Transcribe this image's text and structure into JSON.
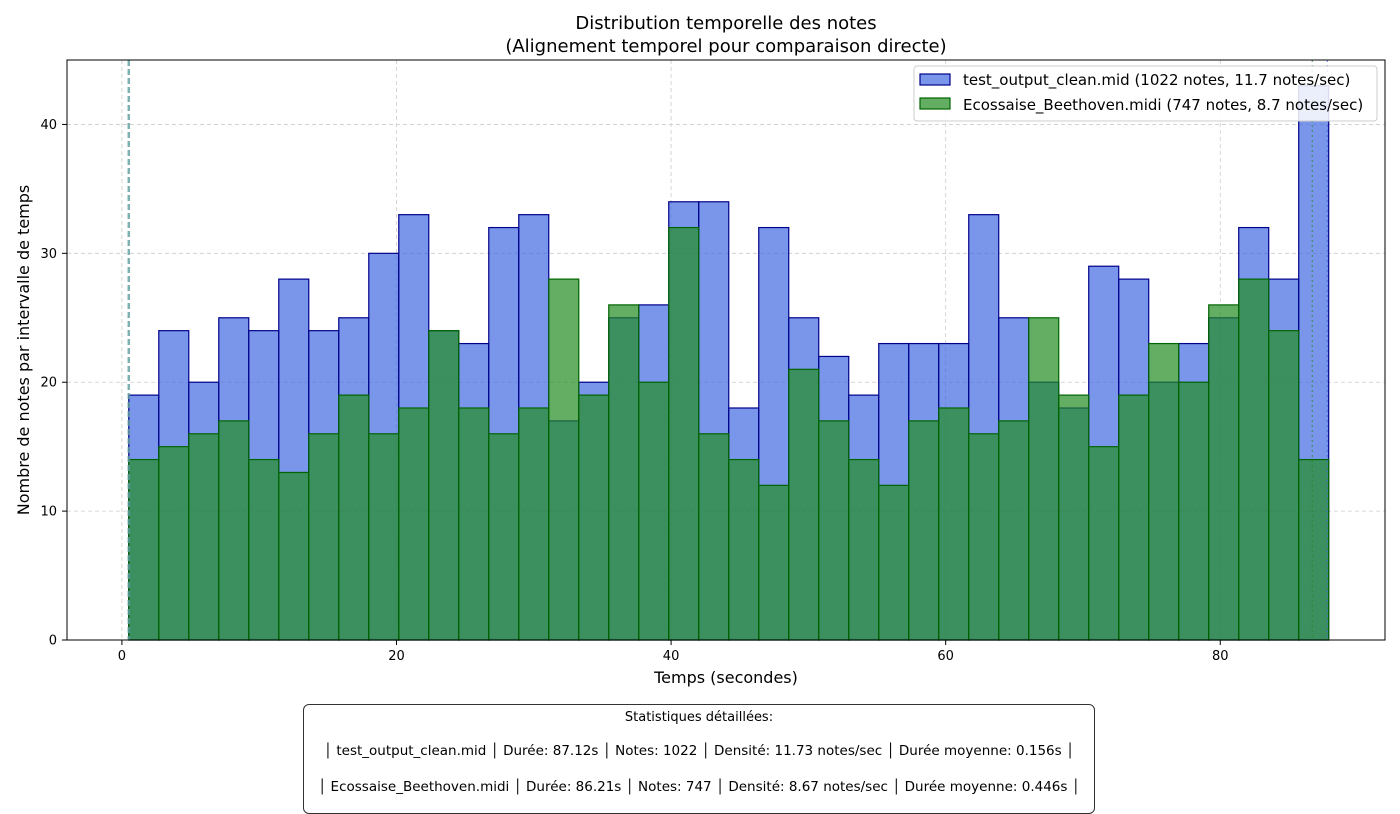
{
  "chart_data": {
    "type": "bar",
    "title": "Distribution temporelle des notes",
    "subtitle": "(Alignement temporel pour comparaison directe)",
    "xlabel": "Temps (secondes)",
    "ylabel": "Nombre de notes par intervalle de temps",
    "xlim": [
      -4,
      92
    ],
    "ylim": [
      0,
      45
    ],
    "xticks": [
      0,
      20,
      40,
      60,
      80
    ],
    "yticks": [
      0,
      10,
      20,
      30,
      40
    ],
    "grid": true,
    "legend_position": "top-right",
    "bin_start": 0.5,
    "bin_width": 2.185,
    "vlines": [
      0.5,
      86.7,
      87.8
    ],
    "series": [
      {
        "name": "test_output_clean.mid (1022 notes, 11.7 notes/sec)",
        "color": "#4169e1",
        "edge": "#00008b",
        "values": [
          19,
          24,
          20,
          25,
          24,
          28,
          24,
          25,
          30,
          33,
          24,
          23,
          32,
          33,
          17,
          20,
          25,
          26,
          34,
          34,
          18,
          32,
          25,
          22,
          19,
          23,
          23,
          23,
          33,
          25,
          20,
          18,
          29,
          28,
          20,
          23,
          25,
          32,
          28,
          43
        ]
      },
      {
        "name": "Ecossaise_Beethoven.midi (747 notes, 8.7 notes/sec)",
        "color": "#228b22",
        "edge": "#006400",
        "values": [
          14,
          15,
          16,
          17,
          14,
          13,
          16,
          19,
          16,
          18,
          24,
          18,
          16,
          18,
          28,
          19,
          26,
          20,
          32,
          16,
          14,
          12,
          21,
          17,
          14,
          12,
          17,
          18,
          16,
          17,
          25,
          19,
          15,
          19,
          23,
          20,
          26,
          28,
          24,
          14
        ]
      }
    ]
  },
  "stats": {
    "title": "Statistiques détaillées:",
    "line1": "│ test_output_clean.mid │ Durée: 87.12s │ Notes: 1022 │ Densité: 11.73 notes/sec │ Durée moyenne: 0.156s │",
    "line2": "│ Ecossaise_Beethoven.midi │ Durée: 86.21s │ Notes: 747 │ Densité: 8.67 notes/sec │ Durée moyenne: 0.446s │"
  }
}
